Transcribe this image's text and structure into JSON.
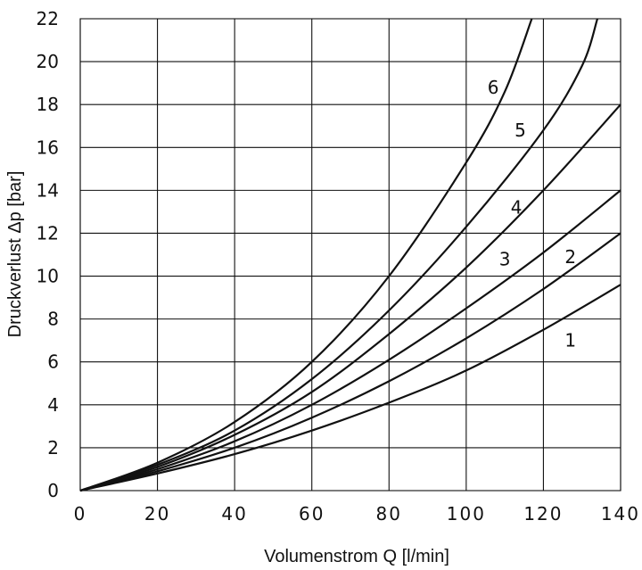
{
  "chart_data": {
    "type": "line",
    "xlabel": "Volumenstrom Q [l/min]",
    "ylabel": "Druckverlust Δp [bar]",
    "xlim": [
      0,
      140
    ],
    "ylim": [
      0,
      22
    ],
    "xticks": [
      0,
      20,
      40,
      60,
      80,
      100,
      120,
      140
    ],
    "yticks": [
      0,
      2,
      4,
      6,
      8,
      10,
      12,
      14,
      16,
      18,
      20,
      22
    ],
    "grid": true,
    "series": [
      {
        "name": "1",
        "x": [
          0,
          20,
          40,
          60,
          80,
          100,
          120,
          140
        ],
        "y": [
          0,
          0.8,
          1.7,
          2.8,
          4.1,
          5.6,
          7.5,
          9.6
        ]
      },
      {
        "name": "2",
        "x": [
          0,
          20,
          40,
          60,
          80,
          100,
          120,
          140
        ],
        "y": [
          0,
          0.9,
          2.0,
          3.4,
          5.1,
          7.1,
          9.4,
          12.0
        ]
      },
      {
        "name": "3",
        "x": [
          0,
          20,
          40,
          60,
          80,
          100,
          120,
          140
        ],
        "y": [
          0,
          1.0,
          2.3,
          4.0,
          6.1,
          8.5,
          11.1,
          14.0
        ]
      },
      {
        "name": "4",
        "x": [
          0,
          20,
          40,
          60,
          80,
          100,
          120,
          140
        ],
        "y": [
          0,
          1.1,
          2.6,
          4.6,
          7.3,
          10.4,
          14.0,
          18.0
        ]
      },
      {
        "name": "5",
        "x": [
          0,
          20,
          40,
          60,
          80,
          100,
          120,
          130,
          134
        ],
        "y": [
          0,
          1.2,
          2.8,
          5.2,
          8.4,
          12.3,
          16.8,
          19.8,
          22.0
        ]
      },
      {
        "name": "6",
        "x": [
          0,
          20,
          40,
          60,
          80,
          100,
          110,
          117
        ],
        "y": [
          0,
          1.3,
          3.2,
          6.0,
          10.0,
          15.3,
          18.6,
          22.0
        ]
      }
    ],
    "curve_labels": [
      {
        "text": "1",
        "x": 127,
        "y": 7.0
      },
      {
        "text": "2",
        "x": 127,
        "y": 10.9
      },
      {
        "text": "3",
        "x": 110,
        "y": 10.8
      },
      {
        "text": "4",
        "x": 113,
        "y": 13.2
      },
      {
        "text": "5",
        "x": 114,
        "y": 16.8
      },
      {
        "text": "6",
        "x": 107,
        "y": 18.8
      }
    ]
  }
}
